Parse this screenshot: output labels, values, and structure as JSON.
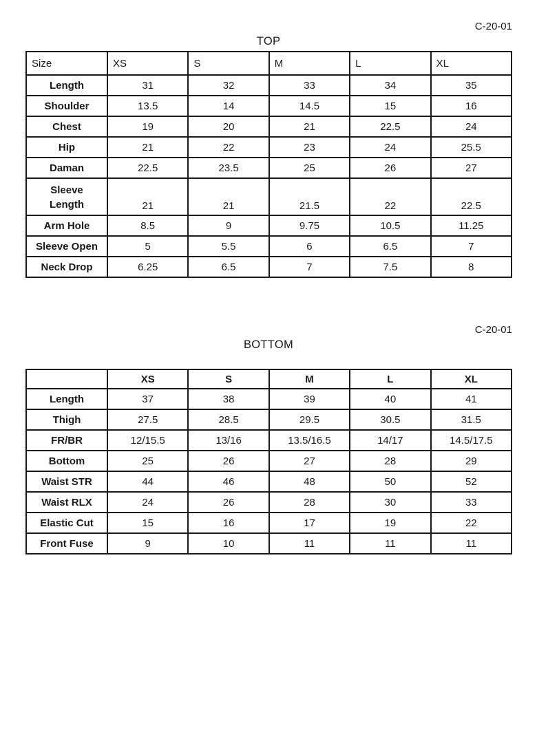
{
  "top_section": {
    "code": "C-20-01",
    "title": "TOP",
    "header": [
      "Size",
      "XS",
      "S",
      "M",
      "L",
      "XL"
    ],
    "rows": [
      {
        "label": "Length",
        "values": [
          "31",
          "32",
          "33",
          "34",
          "35"
        ]
      },
      {
        "label": "Shoulder",
        "values": [
          "13.5",
          "14",
          "14.5",
          "15",
          "16"
        ]
      },
      {
        "label": "Chest",
        "values": [
          "19",
          "20",
          "21",
          "22.5",
          "24"
        ]
      },
      {
        "label": "Hip",
        "values": [
          "21",
          "22",
          "23",
          "24",
          "25.5"
        ]
      },
      {
        "label": "Daman",
        "values": [
          "22.5",
          "23.5",
          "25",
          "26",
          "27"
        ]
      },
      {
        "label": "Sleeve\nLength",
        "values": [
          "21",
          "21",
          "21.5",
          "22",
          "22.5"
        ],
        "variant": "tall"
      },
      {
        "label": "Arm Hole",
        "values": [
          "8.5",
          "9",
          "9.75",
          "10.5",
          "11.25"
        ]
      },
      {
        "label": "Sleeve Open",
        "values": [
          "5",
          "5.5",
          "6",
          "6.5",
          "7"
        ]
      },
      {
        "label": "Neck Drop",
        "values": [
          "6.25",
          "6.5",
          "7",
          "7.5",
          "8"
        ]
      }
    ]
  },
  "bottom_section": {
    "code": "C-20-01",
    "title": "BOTTOM",
    "header": [
      "",
      "XS",
      "S",
      "M",
      "L",
      "XL"
    ],
    "rows": [
      {
        "label": "Length",
        "values": [
          "37",
          "38",
          "39",
          "40",
          "41"
        ]
      },
      {
        "label": "Thigh",
        "values": [
          "27.5",
          "28.5",
          "29.5",
          "30.5",
          "31.5"
        ]
      },
      {
        "label": "FR/BR",
        "values": [
          "12/15.5",
          "13/16",
          "13.5/16.5",
          "14/17",
          "14.5/17.5"
        ]
      },
      {
        "label": "Bottom",
        "values": [
          "25",
          "26",
          "27",
          "28",
          "29"
        ]
      },
      {
        "label": "Waist STR",
        "values": [
          "44",
          "46",
          "48",
          "50",
          "52"
        ]
      },
      {
        "label": "Waist RLX",
        "values": [
          "24",
          "26",
          "28",
          "30",
          "33"
        ]
      },
      {
        "label": "Elastic Cut",
        "values": [
          "15",
          "16",
          "17",
          "19",
          "22"
        ]
      },
      {
        "label": "Front Fuse",
        "values": [
          "9",
          "10",
          "11",
          "11",
          "11"
        ]
      }
    ]
  }
}
